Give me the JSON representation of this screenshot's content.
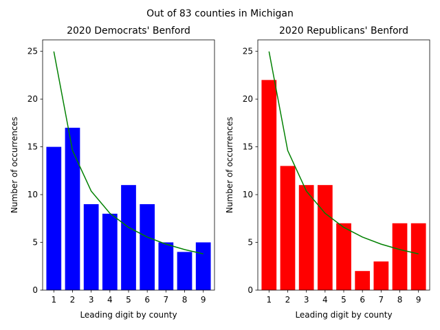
{
  "figure": {
    "suptitle": "Out of 83 counties in Michigan"
  },
  "chart_data": [
    {
      "type": "bar",
      "title": "2020 Democrats' Benford",
      "xlabel": "Leading digit by county",
      "ylabel": "Number of occurrences",
      "categories": [
        "1",
        "2",
        "3",
        "4",
        "5",
        "6",
        "7",
        "8",
        "9"
      ],
      "values": [
        15,
        17,
        9,
        8,
        11,
        9,
        5,
        4,
        5
      ],
      "bar_color": "#0000ff",
      "benford_curve": [
        24.985,
        14.615,
        10.37,
        8.043,
        6.572,
        5.557,
        4.814,
        4.246,
        3.798
      ],
      "curve_color": "#008000",
      "ylim": [
        0,
        26.2
      ],
      "yticks": [
        0,
        5,
        10,
        15,
        20,
        25
      ]
    },
    {
      "type": "bar",
      "title": "2020 Republicans' Benford",
      "xlabel": "Leading digit by county",
      "ylabel": "Number of occurrences",
      "categories": [
        "1",
        "2",
        "3",
        "4",
        "5",
        "6",
        "7",
        "8",
        "9"
      ],
      "values": [
        22,
        13,
        11,
        11,
        7,
        2,
        3,
        7,
        7
      ],
      "bar_color": "#ff0000",
      "benford_curve": [
        24.985,
        14.615,
        10.37,
        8.043,
        6.572,
        5.557,
        4.814,
        4.246,
        3.798
      ],
      "curve_color": "#008000",
      "ylim": [
        0,
        26.2
      ],
      "yticks": [
        0,
        5,
        10,
        15,
        20,
        25
      ]
    }
  ]
}
